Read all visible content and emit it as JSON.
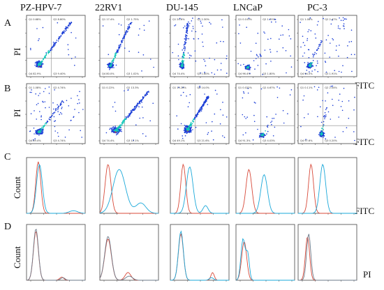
{
  "column_titles": [
    "PZ-HPV-7",
    "22RV1",
    "DU-145",
    "LNCaP",
    "PC-3"
  ],
  "rows": [
    {
      "letter": "A",
      "type": "scatter",
      "ylabel": "PI",
      "xlabel": "FITC"
    },
    {
      "letter": "B",
      "type": "scatter",
      "ylabel": "PI",
      "xlabel": "FITC"
    },
    {
      "letter": "C",
      "type": "histogram",
      "ylabel": "Count",
      "xlabel": "FITC"
    },
    {
      "letter": "D",
      "type": "histogram",
      "ylabel": "Count",
      "xlabel": "PI"
    }
  ],
  "quadrant_labels": [
    "Q1",
    "Q2",
    "Q3",
    "Q4"
  ],
  "quadrant_percentages": {
    "A": [
      [
        "0.68%",
        "8.80%",
        "9.40%",
        "82.9%"
      ],
      [
        "17.4%",
        "1.75%",
        "1.02%",
        "80.0%"
      ],
      [
        "20.6%",
        "2.30%",
        "1.60%",
        "74.4%"
      ],
      [
        "0.103%",
        "1.70%",
        "1.80%",
        "96.4%"
      ],
      [
        "1.08%",
        "2.47%",
        "1.91%",
        "94.5%"
      ]
    ],
    "B": [
      [
        "1.08%",
        "4.74%",
        "4.74%",
        "89.4%"
      ],
      [
        "0.22%",
        "13.3%",
        "12.1%",
        "74.4%"
      ],
      [
        "15.28%",
        "14.0%",
        "21.6%",
        "49.1%"
      ],
      [
        "0.022%",
        "4.67%",
        "4.03%",
        "91.3%"
      ],
      [
        "0.11%",
        "2.04%",
        "0.20%",
        "97.6%"
      ]
    ]
  },
  "colors": {
    "scatter_low": "#1a3dd6",
    "scatter_mid": "#13c7b8",
    "scatter_high": "#ff3b1f",
    "hist_red": "#d84a3a",
    "hist_cyan": "#1aa8d9",
    "hist_gray": "#6b7a8a"
  }
}
